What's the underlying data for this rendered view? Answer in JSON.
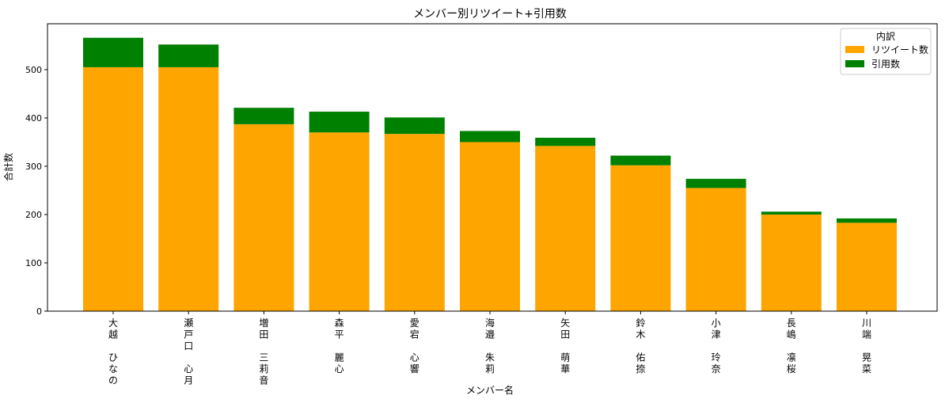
{
  "chart_data": {
    "type": "bar",
    "stacked": true,
    "title": "メンバー別リツイート+引用数",
    "xlabel": "メンバー名",
    "ylabel": "合計数",
    "ylim": [
      0,
      595
    ],
    "yticks": [
      0,
      100,
      200,
      300,
      400,
      500
    ],
    "grid": false,
    "legend": {
      "title": "内訳",
      "placement": "top-right"
    },
    "categories": [
      [
        "大",
        "越",
        "",
        "ひ",
        "な",
        "の"
      ],
      [
        "瀬",
        "戸",
        "口",
        "",
        "心",
        "月"
      ],
      [
        "増",
        "田",
        "",
        "三",
        "莉",
        "音"
      ],
      [
        "森",
        "平",
        "",
        "麗",
        "心"
      ],
      [
        "愛",
        "宕",
        "",
        "心",
        "響"
      ],
      [
        "海",
        "邉",
        "",
        "朱",
        "莉"
      ],
      [
        "矢",
        "田",
        "",
        "萌",
        "華"
      ],
      [
        "鈴",
        "木",
        "",
        "佑",
        "捺"
      ],
      [
        "小",
        "津",
        "",
        "玲",
        "奈"
      ],
      [
        "長",
        "嶋",
        "",
        "凛",
        "桜"
      ],
      [
        "川",
        "端",
        "",
        "晃",
        "菜"
      ]
    ],
    "series": [
      {
        "name": "リツイート数",
        "color": "#ffa500",
        "values": [
          505,
          505,
          387,
          370,
          367,
          350,
          342,
          302,
          255,
          200,
          183
        ]
      },
      {
        "name": "引用数",
        "color": "#008000",
        "values": [
          61,
          47,
          34,
          43,
          34,
          23,
          17,
          20,
          19,
          6,
          9
        ]
      }
    ]
  }
}
